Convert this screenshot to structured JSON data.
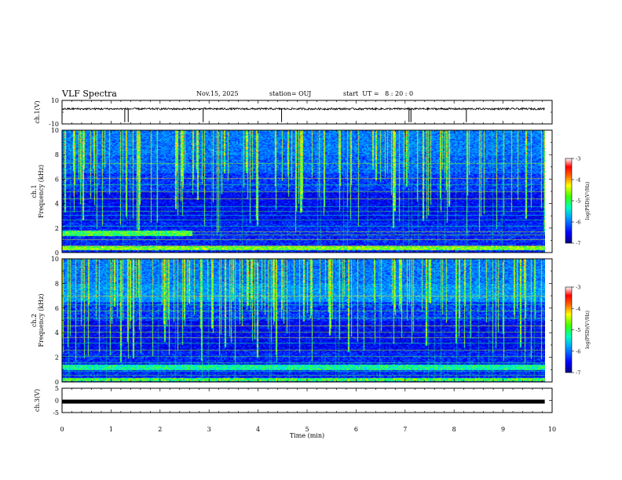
{
  "header": {
    "title": "VLF Spectra",
    "date": "Nov.15, 2025",
    "station": "station= OUJ",
    "start_ut": "start  UT =   8 : 20 : 0"
  },
  "colors": {
    "background": "#ffffff",
    "axis": "#000000",
    "colormap": [
      "#000080",
      "#0000ff",
      "#0080ff",
      "#00e0ff",
      "#00ff80",
      "#80ff00",
      "#ffff00",
      "#ff8000",
      "#ff0000",
      "#ffffff"
    ]
  },
  "chart_data": [
    {
      "id": "ch1-waveform",
      "type": "line",
      "ylabel": "ch.1(V)",
      "ylim": [
        -10,
        10
      ],
      "yticks": [
        "10",
        "-10"
      ],
      "xlim": [
        0,
        10
      ],
      "baseline_v": 2.8,
      "spikes_min": [
        1.28,
        1.35,
        2.88,
        4.48,
        7.08,
        7.12,
        8.25
      ]
    },
    {
      "id": "ch1-spectrogram",
      "type": "heatmap",
      "ylabel": "ch.1\nFrequency (kHz)",
      "ylim": [
        0,
        10
      ],
      "yticks": [
        "0",
        "2",
        "4",
        "6",
        "8",
        "10"
      ],
      "xlim": [
        0,
        9.85
      ],
      "colorbar": {
        "label": "log(PSD)(V²/Hz)",
        "range": [
          -7,
          -3
        ],
        "ticks": [
          "-3",
          "-4",
          "-5",
          "-6",
          "-7"
        ]
      }
    },
    {
      "id": "ch2-spectrogram",
      "type": "heatmap",
      "ylabel": "ch.2\nFrequency (kHz)",
      "ylim": [
        0,
        10
      ],
      "yticks": [
        "0",
        "2",
        "4",
        "6",
        "8",
        "10"
      ],
      "xlim": [
        0,
        9.85
      ],
      "colorbar": {
        "label": "log(PSD)(V²/Hz)",
        "range": [
          -7,
          -3
        ],
        "ticks": [
          "-3",
          "-4",
          "-5",
          "-6",
          "-7"
        ]
      }
    },
    {
      "id": "ch3-waveform",
      "type": "line",
      "ylabel": "ch.3(V)",
      "ylim": [
        -5,
        5
      ],
      "yticks": [
        "5",
        "0",
        "-5"
      ],
      "xlim": [
        0,
        10
      ],
      "baseline_v": -0.5
    }
  ],
  "time_axis": {
    "xlabel": "Time (min)",
    "xlim": [
      0,
      10
    ],
    "ticks": [
      "0",
      "1",
      "2",
      "3",
      "4",
      "5",
      "6",
      "7",
      "8",
      "9",
      "10"
    ]
  }
}
